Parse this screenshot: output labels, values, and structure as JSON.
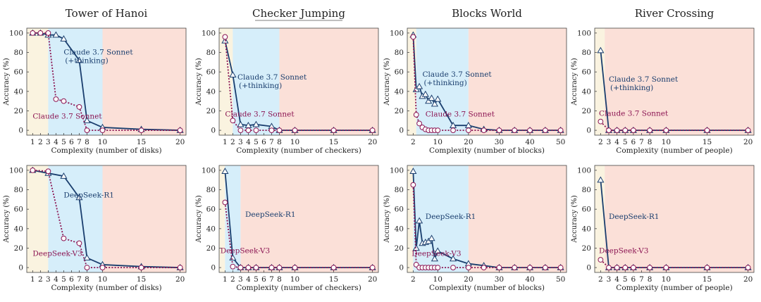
{
  "colors": {
    "thinking": "#1a3e6e",
    "base": "#8b1452",
    "zone_low": "#faf3e0",
    "zone_mid": "#d6eefa",
    "zone_high": "#fbe0d8"
  },
  "chart_data": [
    {
      "type": "line",
      "row": 0,
      "col": 0,
      "title": "Tower of Hanoi",
      "title_underline": false,
      "xlabel": "Complexity (number of disks)",
      "ylabel": "Accuracy (%)",
      "xticks": [
        1,
        2,
        3,
        4,
        5,
        6,
        7,
        8,
        10,
        15,
        20
      ],
      "yticks": [
        0,
        20,
        40,
        60,
        80,
        100
      ],
      "ylim": [
        -5,
        105
      ],
      "zones": [
        1,
        3,
        10
      ],
      "series": [
        {
          "name": "Claude 3.7 Sonnet\n(+thinking)",
          "model": "thinking",
          "x": [
            1,
            2,
            3,
            4,
            5,
            7,
            8,
            10,
            15,
            20
          ],
          "y": [
            100,
            100,
            98,
            98,
            94,
            72,
            10,
            3,
            1,
            0
          ],
          "label_at": [
            5,
            78
          ]
        },
        {
          "name": "Claude 3.7 Sonnet",
          "model": "base",
          "x": [
            1,
            2,
            3,
            4,
            5,
            7,
            8,
            10,
            15,
            20
          ],
          "y": [
            100,
            100,
            100,
            32,
            30,
            24,
            0,
            0,
            0,
            0
          ],
          "label_at": [
            1,
            12
          ]
        }
      ]
    },
    {
      "type": "line",
      "row": 0,
      "col": 1,
      "title": "Checker Jumping",
      "title_underline": true,
      "xlabel": "Complexity (number of checkers)",
      "ylabel": "Accuracy (%)",
      "xticks": [
        1,
        2,
        3,
        4,
        5,
        6,
        7,
        8,
        10,
        15,
        20
      ],
      "yticks": [
        0,
        20,
        40,
        60,
        80,
        100
      ],
      "ylim": [
        -5,
        105
      ],
      "zones": [
        1,
        2,
        8
      ],
      "series": [
        {
          "name": "Claude 3.7 Sonnet\n(+thinking)",
          "model": "thinking",
          "x": [
            1,
            2,
            3,
            4,
            5,
            7,
            8,
            10,
            15,
            20
          ],
          "y": [
            92,
            57,
            6,
            5,
            6,
            4,
            0,
            0,
            0,
            0
          ],
          "label_at": [
            2.6,
            52
          ]
        },
        {
          "name": "Claude 3.7 Sonnet",
          "model": "base",
          "x": [
            1,
            2,
            3,
            4,
            5,
            7,
            8,
            10,
            15,
            20
          ],
          "y": [
            96,
            10,
            0,
            0,
            0,
            0,
            0,
            0,
            0,
            0
          ],
          "label_at": [
            1,
            14
          ]
        }
      ]
    },
    {
      "type": "line",
      "row": 0,
      "col": 2,
      "title": "Blocks World",
      "title_underline": false,
      "xlabel": "Complexity (number of blocks)",
      "ylabel": "Accuracy (%)",
      "xticks": [
        2,
        10,
        20,
        30,
        40,
        50
      ],
      "yticks": [
        0,
        20,
        40,
        60,
        80,
        100
      ],
      "ylim": [
        -5,
        105
      ],
      "zones": [
        2,
        3,
        20
      ],
      "series": [
        {
          "name": "Claude 3.7 Sonnet\n(+thinking)",
          "model": "thinking",
          "x": [
            2,
            3,
            4,
            5,
            6,
            7,
            8,
            9,
            10,
            15,
            20,
            25,
            30,
            35,
            40,
            45,
            50
          ],
          "y": [
            98,
            42,
            45,
            35,
            37,
            30,
            33,
            27,
            32,
            5,
            5,
            1,
            0,
            0,
            0,
            0,
            0
          ],
          "label_at": [
            5,
            55
          ]
        },
        {
          "name": "Claude 3.7 Sonnet",
          "model": "base",
          "x": [
            2,
            3,
            4,
            5,
            6,
            7,
            8,
            9,
            10,
            15,
            20,
            25,
            30,
            35,
            40,
            45,
            50
          ],
          "y": [
            96,
            16,
            7,
            3,
            1,
            0,
            0,
            0,
            0,
            0,
            0,
            0,
            0,
            0,
            0,
            0,
            0
          ],
          "label_at": [
            6,
            14
          ]
        }
      ]
    },
    {
      "type": "line",
      "row": 0,
      "col": 3,
      "title": "River Crossing",
      "title_underline": false,
      "xlabel": "Complexity (number of people)",
      "ylabel": "Accuracy (%)",
      "xticks": [
        2,
        3,
        4,
        5,
        6,
        7,
        8,
        10,
        15,
        20
      ],
      "yticks": [
        0,
        20,
        40,
        60,
        80,
        100
      ],
      "ylim": [
        -5,
        105
      ],
      "zones": [
        1,
        2.5,
        2.5
      ],
      "series": [
        {
          "name": "Claude 3.7 Sonnet\n(+thinking)",
          "model": "thinking",
          "x": [
            2,
            3,
            4,
            5,
            6,
            8,
            10,
            15,
            20
          ],
          "y": [
            82,
            0,
            0,
            0,
            0,
            0,
            0,
            0,
            0
          ],
          "label_at": [
            3,
            50
          ]
        },
        {
          "name": "Claude 3.7 Sonnet",
          "model": "base",
          "x": [
            2,
            3,
            4,
            5,
            6,
            8,
            10,
            15,
            20
          ],
          "y": [
            9,
            0,
            0,
            0,
            0,
            0,
            0,
            0,
            0
          ],
          "label_at": [
            1.8,
            15
          ]
        }
      ]
    },
    {
      "type": "line",
      "row": 1,
      "col": 0,
      "title": "",
      "title_underline": false,
      "xlabel": "Complexity (number of disks)",
      "ylabel": "Accuracy (%)",
      "xticks": [
        1,
        2,
        3,
        4,
        5,
        6,
        7,
        8,
        10,
        15,
        20
      ],
      "yticks": [
        0,
        20,
        40,
        60,
        80,
        100
      ],
      "ylim": [
        -5,
        105
      ],
      "zones": [
        1,
        3,
        10
      ],
      "series": [
        {
          "name": "DeepSeek-R1",
          "model": "thinking",
          "x": [
            1,
            3,
            5,
            7,
            8,
            10,
            15,
            20
          ],
          "y": [
            100,
            97,
            94,
            72,
            10,
            3,
            1,
            0
          ],
          "label_at": [
            5,
            72
          ]
        },
        {
          "name": "DeepSeek-V3",
          "model": "base",
          "x": [
            1,
            3,
            5,
            7,
            8,
            10,
            15,
            20
          ],
          "y": [
            100,
            99,
            30,
            25,
            0,
            0,
            0,
            0
          ],
          "label_at": [
            1,
            12
          ]
        }
      ]
    },
    {
      "type": "line",
      "row": 1,
      "col": 1,
      "title": "",
      "title_underline": false,
      "xlabel": "Complexity (number of checkers)",
      "ylabel": "Accuracy (%)",
      "xticks": [
        1,
        2,
        3,
        4,
        5,
        6,
        7,
        8,
        10,
        15,
        20
      ],
      "yticks": [
        0,
        20,
        40,
        60,
        80,
        100
      ],
      "ylim": [
        -5,
        105
      ],
      "zones": [
        1,
        1,
        3
      ],
      "series": [
        {
          "name": "DeepSeek-R1",
          "model": "thinking",
          "x": [
            1,
            2,
            3,
            4,
            5,
            7,
            8,
            10,
            15,
            20
          ],
          "y": [
            99,
            10,
            0,
            0,
            0,
            0,
            0,
            0,
            0,
            0
          ],
          "label_at": [
            3.6,
            52
          ]
        },
        {
          "name": "DeepSeek-V3",
          "model": "base",
          "x": [
            1,
            2,
            3,
            4,
            5,
            7,
            8,
            10,
            15,
            20
          ],
          "y": [
            67,
            1,
            0,
            0,
            0,
            0,
            0,
            0,
            0,
            0
          ],
          "label_at": [
            0.4,
            15
          ]
        }
      ]
    },
    {
      "type": "line",
      "row": 1,
      "col": 2,
      "title": "",
      "title_underline": false,
      "xlabel": "Complexity (number of blocks)",
      "ylabel": "Accuracy (%)",
      "xticks": [
        2,
        10,
        20,
        30,
        40,
        50
      ],
      "yticks": [
        0,
        20,
        40,
        60,
        80,
        100
      ],
      "ylim": [
        -5,
        105
      ],
      "zones": [
        2,
        2,
        20
      ],
      "series": [
        {
          "name": "DeepSeek-R1",
          "model": "thinking",
          "x": [
            2,
            3,
            4,
            5,
            6,
            7,
            8,
            9,
            10,
            15,
            20,
            25,
            30,
            35,
            40,
            45,
            50
          ],
          "y": [
            99,
            20,
            48,
            25,
            26,
            27,
            30,
            9,
            17,
            9,
            4,
            2,
            0,
            0,
            0,
            0,
            0
          ],
          "label_at": [
            6,
            50
          ]
        },
        {
          "name": "DeepSeek-V3",
          "model": "base",
          "x": [
            2,
            3,
            4,
            5,
            6,
            7,
            8,
            9,
            10,
            15,
            20,
            25,
            30,
            35,
            40,
            45,
            50
          ],
          "y": [
            85,
            3,
            0,
            0,
            0,
            0,
            0,
            0,
            0,
            0,
            0,
            0,
            0,
            0,
            0,
            0,
            0
          ],
          "label_at": [
            1.5,
            12
          ]
        }
      ]
    },
    {
      "type": "line",
      "row": 1,
      "col": 3,
      "title": "",
      "title_underline": false,
      "xlabel": "Complexity (number of people)",
      "ylabel": "Accuracy (%)",
      "xticks": [
        2,
        3,
        4,
        5,
        6,
        7,
        8,
        10,
        15,
        20
      ],
      "yticks": [
        0,
        20,
        40,
        60,
        80,
        100
      ],
      "ylim": [
        -5,
        105
      ],
      "zones": [
        1,
        2.5,
        2.5
      ],
      "series": [
        {
          "name": "DeepSeek-R1",
          "model": "thinking",
          "x": [
            2,
            3,
            4,
            5,
            6,
            8,
            10,
            15,
            20
          ],
          "y": [
            90,
            0,
            0,
            0,
            0,
            0,
            0,
            0,
            0
          ],
          "label_at": [
            3,
            50
          ]
        },
        {
          "name": "DeepSeek-V3",
          "model": "base",
          "x": [
            2,
            3,
            4,
            5,
            6,
            8,
            10,
            15,
            20
          ],
          "y": [
            8,
            0,
            0,
            0,
            0,
            0,
            0,
            0,
            0
          ],
          "label_at": [
            1.8,
            15
          ]
        }
      ]
    }
  ]
}
